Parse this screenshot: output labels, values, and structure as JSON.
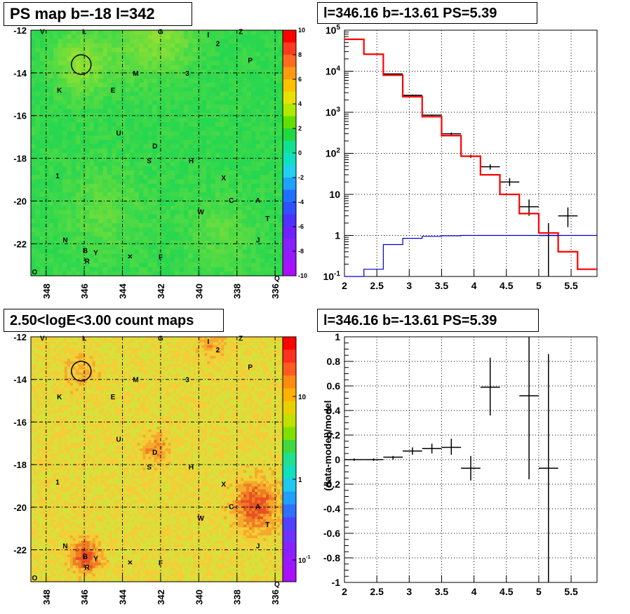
{
  "titles": {
    "ps_map": "PS map b=-18 l=342",
    "spectrum": "l=346.16 b=-13.61 PS=5.39",
    "count_map": "2.50<logE<3.00 count maps",
    "residual": "l=346.16 b=-13.61 PS=5.39"
  },
  "colors": {
    "data": "#000000",
    "model": "#ff0000",
    "background_model": "#0000cc",
    "psmap_fill": "#22dd55",
    "countmap_fill": "#f4c040"
  },
  "chart_data": [
    {
      "type": "heatmap",
      "name": "ps_map",
      "title": "PS map b=-18 l=342",
      "x_ticks": [
        "348",
        "346",
        "344",
        "342",
        "340",
        "338",
        "336"
      ],
      "y_ticks": [
        "-12",
        "-14",
        "-16",
        "-18",
        "-20",
        "-22"
      ],
      "xlim": [
        348.8,
        335.6
      ],
      "ylim": [
        -23.5,
        -12
      ],
      "colorbar": {
        "min": -10,
        "max": 10,
        "ticks": [
          "10",
          "8",
          "6",
          "4",
          "2",
          "0",
          "-2",
          "-4",
          "-6",
          "-8",
          "-10"
        ]
      },
      "grid": true,
      "circle": {
        "l": 346.16,
        "b": -13.61
      },
      "labels": [
        {
          "text": "V",
          "l": 348.2,
          "b": -12.05
        },
        {
          "text": "L",
          "l": 346.0,
          "b": -12.05
        },
        {
          "text": "G",
          "l": 342.0,
          "b": -12.05
        },
        {
          "text": "I",
          "l": 339.5,
          "b": -12.2
        },
        {
          "text": "Z",
          "l": 337.8,
          "b": -12.05
        },
        {
          "text": "2",
          "l": 339.0,
          "b": -12.6
        },
        {
          "text": "P",
          "l": 337.3,
          "b": -13.4
        },
        {
          "text": "M",
          "l": 343.3,
          "b": -14.0
        },
        {
          "text": "3",
          "l": 340.6,
          "b": -14.0
        },
        {
          "text": "K",
          "l": 347.3,
          "b": -14.8
        },
        {
          "text": "E",
          "l": 344.5,
          "b": -14.8
        },
        {
          "text": "U",
          "l": 344.2,
          "b": -16.8
        },
        {
          "text": "D",
          "l": 342.3,
          "b": -17.4
        },
        {
          "text": "S",
          "l": 342.6,
          "b": -18.1
        },
        {
          "text": "H",
          "l": 340.4,
          "b": -18.1
        },
        {
          "text": "1",
          "l": 347.4,
          "b": -18.8
        },
        {
          "text": "X",
          "l": 338.7,
          "b": -18.9
        },
        {
          "text": "C",
          "l": 338.3,
          "b": -19.95
        },
        {
          "text": "A",
          "l": 336.9,
          "b": -19.95
        },
        {
          "text": "W",
          "l": 339.9,
          "b": -20.5
        },
        {
          "text": "T",
          "l": 336.4,
          "b": -20.8
        },
        {
          "text": "J",
          "l": 336.9,
          "b": -21.8
        },
        {
          "text": "N",
          "l": 347.0,
          "b": -21.8
        },
        {
          "text": "B",
          "l": 345.95,
          "b": -22.3
        },
        {
          "text": "Y",
          "l": 345.4,
          "b": -22.4
        },
        {
          "text": "R",
          "l": 345.85,
          "b": -22.8
        },
        {
          "text": "F",
          "l": 342.0,
          "b": -22.6
        },
        {
          "text": "O",
          "l": 348.6,
          "b": -23.3
        },
        {
          "text": "Q",
          "l": 335.9,
          "b": -23.6
        }
      ]
    },
    {
      "type": "line",
      "name": "spectrum",
      "title": "l=346.16 b=-13.61 PS=5.39",
      "xlim": [
        2,
        5.9
      ],
      "ylog": true,
      "ylim": [
        0.1,
        100000
      ],
      "x_ticks": [
        "2",
        "2.5",
        "3",
        "3.5",
        "4",
        "4.5",
        "5",
        "5.5"
      ],
      "y_ticks": [
        "10^-1",
        "1",
        "10",
        "10^2",
        "10^3",
        "10^4",
        "10^5"
      ],
      "grid": true,
      "series": [
        {
          "role": "data",
          "points": [
            {
              "x": 2.15,
              "y": 60000,
              "ylo": 59000,
              "yhi": 61000
            },
            {
              "x": 2.45,
              "y": 26000,
              "ylo": 25500,
              "yhi": 26500
            },
            {
              "x": 2.75,
              "y": 8600,
              "ylo": 8400,
              "yhi": 8800
            },
            {
              "x": 3.05,
              "y": 2600,
              "ylo": 2500,
              "yhi": 2700
            },
            {
              "x": 3.35,
              "y": 850,
              "ylo": 820,
              "yhi": 880
            },
            {
              "x": 3.65,
              "y": 300,
              "ylo": 280,
              "yhi": 320
            },
            {
              "x": 3.95,
              "y": 85,
              "ylo": 77,
              "yhi": 93
            },
            {
              "x": 4.25,
              "y": 47,
              "ylo": 40,
              "yhi": 54
            },
            {
              "x": 4.55,
              "y": 20,
              "ylo": 16,
              "yhi": 25
            },
            {
              "x": 4.85,
              "y": 5,
              "ylo": 3,
              "yhi": 7.5
            },
            {
              "x": 5.15,
              "y": 1,
              "ylo": 0.1,
              "yhi": 2
            },
            {
              "x": 5.45,
              "y": 3,
              "ylo": 1.6,
              "yhi": 4.8
            }
          ]
        },
        {
          "role": "model",
          "edges": [
            2,
            2.3,
            2.6,
            2.9,
            3.2,
            3.5,
            3.8,
            4.1,
            4.4,
            4.7,
            5.0,
            5.3,
            5.6,
            5.9
          ],
          "values": [
            60000,
            26000,
            8000,
            2400,
            780,
            270,
            85,
            30,
            10,
            3.4,
            1.15,
            0.4,
            0.15
          ]
        },
        {
          "role": "background_model",
          "edges": [
            2,
            2.3,
            2.6,
            2.9,
            3.2,
            3.5,
            3.8,
            4.1,
            4.4,
            4.7,
            5.0,
            5.3,
            5.6,
            5.9
          ],
          "values": [
            0.1,
            0.15,
            0.6,
            0.85,
            0.95,
            0.98,
            1.0,
            1.0,
            1.0,
            1.0,
            1.0,
            1.0,
            1.0
          ]
        }
      ]
    },
    {
      "type": "heatmap",
      "name": "count_map",
      "title": "2.50<logE<3.00 count maps",
      "x_ticks": [
        "348",
        "346",
        "344",
        "342",
        "340",
        "338",
        "336"
      ],
      "y_ticks": [
        "-12",
        "-14",
        "-16",
        "-18",
        "-20",
        "-22"
      ],
      "xlim": [
        348.8,
        335.6
      ],
      "ylim": [
        -23.5,
        -12
      ],
      "colorbar": {
        "log": true,
        "ticks": [
          "10",
          "1",
          "10^-1"
        ]
      },
      "grid": true,
      "circle": {
        "l": 346.16,
        "b": -13.61
      }
    },
    {
      "type": "scatter",
      "name": "residual",
      "title": "l=346.16 b=-13.61 PS=5.39",
      "ylabel": "(data-model)/model",
      "xlim": [
        2,
        5.9
      ],
      "ylim": [
        -1,
        1
      ],
      "x_ticks": [
        "2",
        "2.5",
        "3",
        "3.5",
        "4",
        "4.5",
        "5",
        "5.5"
      ],
      "y_ticks": [
        "1",
        "0.8",
        "0.6",
        "0.4",
        "0.2",
        "0",
        "-0.2",
        "-0.4",
        "-0.6",
        "-0.8",
        "-1"
      ],
      "grid": true,
      "points": [
        {
          "x": 2.15,
          "y": 0.0,
          "ylo": -0.01,
          "yhi": 0.01
        },
        {
          "x": 2.45,
          "y": 0.0,
          "ylo": -0.01,
          "yhi": 0.01
        },
        {
          "x": 2.75,
          "y": 0.02,
          "ylo": 0.0,
          "yhi": 0.03
        },
        {
          "x": 3.05,
          "y": 0.07,
          "ylo": 0.04,
          "yhi": 0.1
        },
        {
          "x": 3.35,
          "y": 0.09,
          "ylo": 0.05,
          "yhi": 0.13
        },
        {
          "x": 3.65,
          "y": 0.1,
          "ylo": 0.04,
          "yhi": 0.17
        },
        {
          "x": 3.95,
          "y": -0.07,
          "ylo": -0.17,
          "yhi": 0.03
        },
        {
          "x": 4.25,
          "y": 0.59,
          "ylo": 0.36,
          "yhi": 0.83
        },
        {
          "x": 4.85,
          "y": 0.52,
          "ylo": -0.16,
          "yhi": 1.2
        },
        {
          "x": 5.15,
          "y": -0.07,
          "ylo": -1.1,
          "yhi": 0.86
        }
      ]
    }
  ]
}
